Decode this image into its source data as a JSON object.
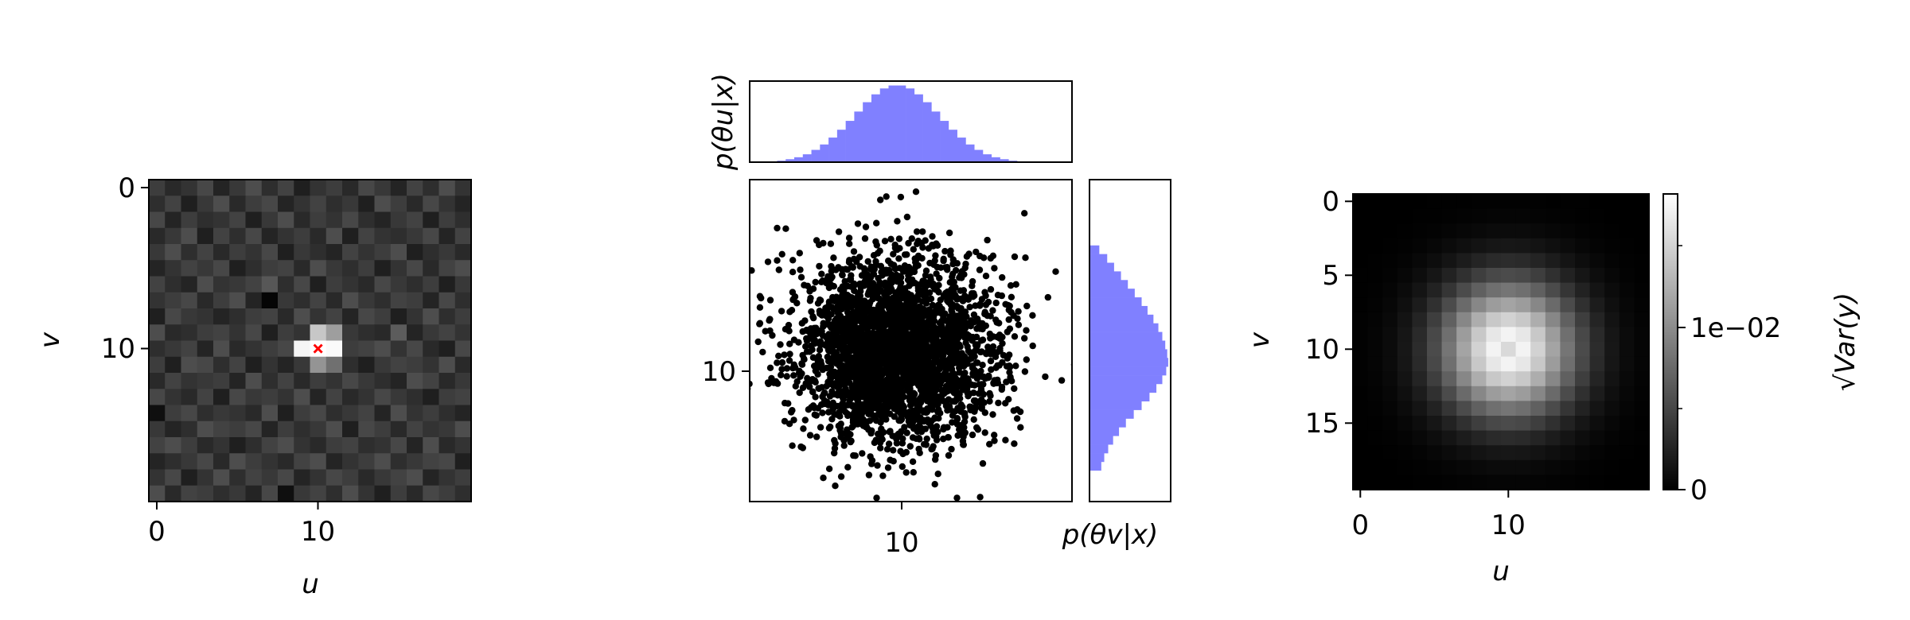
{
  "chart_data": [
    {
      "type": "heatmap",
      "xlabel": "u",
      "ylabel": "v",
      "x_ticks": [
        "0",
        "10"
      ],
      "y_ticks": [
        "0",
        "10"
      ],
      "colormap": "gray",
      "grid_size": [
        20,
        20
      ],
      "marker": {
        "u": 10,
        "v": 10,
        "symbol": "x",
        "color": "#ff0000"
      },
      "values": [
        [
          0.24,
          0.16,
          0.2,
          0.28,
          0.14,
          0.22,
          0.3,
          0.18,
          0.26,
          0.12,
          0.2,
          0.24,
          0.16,
          0.28,
          0.22,
          0.14,
          0.26,
          0.18,
          0.3,
          0.2
        ],
        [
          0.18,
          0.26,
          0.12,
          0.22,
          0.3,
          0.16,
          0.24,
          0.28,
          0.14,
          0.2,
          0.26,
          0.18,
          0.22,
          0.12,
          0.3,
          0.24,
          0.16,
          0.28,
          0.2,
          0.14
        ],
        [
          0.28,
          0.14,
          0.24,
          0.18,
          0.2,
          0.26,
          0.12,
          0.22,
          0.3,
          0.16,
          0.24,
          0.2,
          0.28,
          0.18,
          0.14,
          0.22,
          0.26,
          0.12,
          0.24,
          0.18
        ],
        [
          0.16,
          0.22,
          0.3,
          0.12,
          0.26,
          0.18,
          0.28,
          0.14,
          0.2,
          0.24,
          0.16,
          0.3,
          0.12,
          0.26,
          0.2,
          0.18,
          0.22,
          0.28,
          0.14,
          0.26
        ],
        [
          0.22,
          0.3,
          0.18,
          0.26,
          0.16,
          0.24,
          0.2,
          0.28,
          0.12,
          0.22,
          0.18,
          0.14,
          0.26,
          0.2,
          0.24,
          0.3,
          0.12,
          0.18,
          0.22,
          0.16
        ],
        [
          0.14,
          0.2,
          0.26,
          0.22,
          0.28,
          0.12,
          0.18,
          0.24,
          0.26,
          0.16,
          0.3,
          0.22,
          0.18,
          0.24,
          0.12,
          0.2,
          0.28,
          0.16,
          0.26,
          0.3
        ],
        [
          0.26,
          0.18,
          0.14,
          0.3,
          0.2,
          0.22,
          0.26,
          0.34,
          0.18,
          0.28,
          0.12,
          0.24,
          0.2,
          0.16,
          0.28,
          0.22,
          0.18,
          0.24,
          0.12,
          0.22
        ],
        [
          0.2,
          0.24,
          0.28,
          0.16,
          0.24,
          0.3,
          0.14,
          0.02,
          0.22,
          0.18,
          0.26,
          0.16,
          0.3,
          0.22,
          0.18,
          0.26,
          0.24,
          0.14,
          0.28,
          0.18
        ],
        [
          0.12,
          0.28,
          0.22,
          0.2,
          0.14,
          0.18,
          0.24,
          0.26,
          0.16,
          0.3,
          0.2,
          0.26,
          0.14,
          0.28,
          0.24,
          0.12,
          0.2,
          0.3,
          0.18,
          0.24
        ],
        [
          0.3,
          0.16,
          0.18,
          0.24,
          0.26,
          0.2,
          0.28,
          0.12,
          0.24,
          0.2,
          0.78,
          0.62,
          0.22,
          0.18,
          0.16,
          0.36,
          0.14,
          0.22,
          0.26,
          0.2
        ],
        [
          0.18,
          0.22,
          0.26,
          0.14,
          0.3,
          0.16,
          0.2,
          0.24,
          0.28,
          0.96,
          1.0,
          0.98,
          0.24,
          0.26,
          0.3,
          0.2,
          0.28,
          0.16,
          0.12,
          0.28
        ],
        [
          0.24,
          0.12,
          0.3,
          0.28,
          0.18,
          0.26,
          0.12,
          0.2,
          0.14,
          0.22,
          0.58,
          0.44,
          0.18,
          0.12,
          0.22,
          0.26,
          0.24,
          0.2,
          0.3,
          0.16
        ],
        [
          0.16,
          0.26,
          0.2,
          0.22,
          0.24,
          0.14,
          0.3,
          0.18,
          0.26,
          0.16,
          0.24,
          0.2,
          0.28,
          0.22,
          0.18,
          0.14,
          0.3,
          0.26,
          0.16,
          0.22
        ],
        [
          0.28,
          0.2,
          0.16,
          0.26,
          0.12,
          0.28,
          0.22,
          0.24,
          0.2,
          0.3,
          0.14,
          0.26,
          0.16,
          0.2,
          0.28,
          0.22,
          0.18,
          0.12,
          0.24,
          0.26
        ],
        [
          0.06,
          0.24,
          0.28,
          0.18,
          0.22,
          0.2,
          0.16,
          0.3,
          0.12,
          0.24,
          0.28,
          0.18,
          0.22,
          0.26,
          0.14,
          0.3,
          0.2,
          0.24,
          0.18,
          0.14
        ],
        [
          0.22,
          0.14,
          0.18,
          0.3,
          0.26,
          0.24,
          0.28,
          0.14,
          0.24,
          0.18,
          0.22,
          0.3,
          0.12,
          0.28,
          0.24,
          0.16,
          0.26,
          0.2,
          0.22,
          0.3
        ],
        [
          0.26,
          0.3,
          0.24,
          0.16,
          0.2,
          0.12,
          0.18,
          0.26,
          0.3,
          0.2,
          0.16,
          0.24,
          0.26,
          0.18,
          0.2,
          0.28,
          0.14,
          0.3,
          0.16,
          0.2
        ],
        [
          0.14,
          0.18,
          0.22,
          0.28,
          0.16,
          0.3,
          0.24,
          0.2,
          0.16,
          0.26,
          0.3,
          0.14,
          0.2,
          0.24,
          0.3,
          0.18,
          0.22,
          0.26,
          0.28,
          0.12
        ],
        [
          0.2,
          0.28,
          0.12,
          0.2,
          0.3,
          0.18,
          0.26,
          0.22,
          0.28,
          0.14,
          0.2,
          0.28,
          0.24,
          0.16,
          0.22,
          0.26,
          0.3,
          0.14,
          0.2,
          0.24
        ],
        [
          0.3,
          0.16,
          0.26,
          0.24,
          0.18,
          0.22,
          0.14,
          0.28,
          0.06,
          0.22,
          0.26,
          0.18,
          0.3,
          0.2,
          0.12,
          0.24,
          0.16,
          0.28,
          0.24,
          0.18
        ]
      ]
    },
    {
      "type": "scatter",
      "x_ticks": [
        "10"
      ],
      "y_ticks": [
        "10"
      ],
      "xlim": [
        1.4,
        20.2
      ],
      "ylim": [
        18.8,
        0.2
      ],
      "point_color": "#000000",
      "center": [
        10.0,
        10.0
      ],
      "spread": [
        2.9,
        2.6
      ],
      "n_points": 3000,
      "outliers": [
        [
          11.1,
          0.9
        ],
        [
          3.0,
          3.0
        ],
        [
          15.6,
          4.6
        ],
        [
          18.8,
          7.0
        ],
        [
          2.0,
          8.5
        ],
        [
          19.6,
          11.8
        ],
        [
          4.5,
          15.7
        ],
        [
          12.2,
          17.8
        ],
        [
          9.6,
          16.4
        ],
        [
          15.0,
          16.6
        ],
        [
          17.0,
          14.0
        ],
        [
          2.5,
          12.0
        ]
      ]
    },
    {
      "type": "bar",
      "ylabel": "p(θu|x)",
      "color": "#8080ff",
      "x_start": 3.0,
      "bin_width": 0.5,
      "values": [
        0.003,
        0.006,
        0.01,
        0.016,
        0.025,
        0.036,
        0.05,
        0.066,
        0.084,
        0.103,
        0.122,
        0.138,
        0.15,
        0.156,
        0.156,
        0.15,
        0.138,
        0.122,
        0.103,
        0.084,
        0.066,
        0.05,
        0.036,
        0.025,
        0.016,
        0.01,
        0.006,
        0.003
      ]
    },
    {
      "type": "bar",
      "orientation": "horizontal",
      "xlabel": "p(θv|x)",
      "color": "#8080ff",
      "y_start": 4.0,
      "bin_width": 0.5,
      "values": [
        0.02,
        0.036,
        0.05,
        0.064,
        0.078,
        0.092,
        0.106,
        0.118,
        0.13,
        0.14,
        0.148,
        0.154,
        0.158,
        0.16,
        0.156,
        0.148,
        0.136,
        0.122,
        0.106,
        0.09,
        0.074,
        0.06,
        0.048,
        0.038,
        0.03,
        0.024
      ]
    },
    {
      "type": "heatmap",
      "xlabel": "u",
      "ylabel": "v",
      "x_ticks": [
        "0",
        "10"
      ],
      "y_ticks": [
        "0",
        "5",
        "10",
        "15"
      ],
      "colormap": "gray",
      "grid_size": [
        20,
        20
      ],
      "center": [
        10,
        10
      ],
      "sigma": 3.2,
      "center_dip": 0.15,
      "colorbar": {
        "label": "√Var(y)",
        "tick_labels": [
          "0",
          "1e−02"
        ],
        "range": [
          0,
          0.0135
        ]
      }
    }
  ]
}
